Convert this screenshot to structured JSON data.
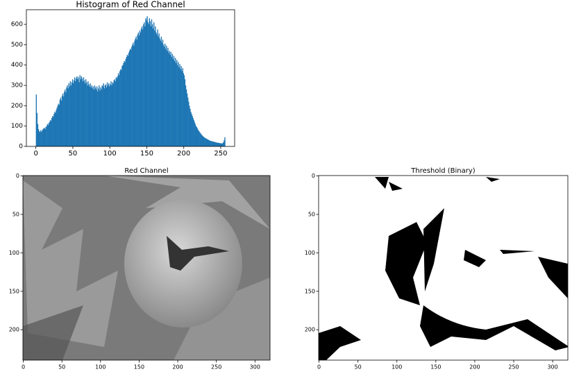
{
  "chart_data": [
    {
      "type": "histogram",
      "title": "Histogram of Red Channel",
      "color": "#1f77b4",
      "bins": [
        0,
        1,
        2,
        3,
        4,
        5,
        6,
        7,
        8,
        9,
        10,
        11,
        12,
        13,
        14,
        15,
        16,
        17,
        18,
        19,
        20,
        21,
        22,
        23,
        24,
        25,
        26,
        27,
        28,
        29,
        30,
        31,
        32,
        33,
        34,
        35,
        36,
        37,
        38,
        39,
        40,
        41,
        42,
        43,
        44,
        45,
        46,
        47,
        48,
        49,
        50,
        51,
        52,
        53,
        54,
        55,
        56,
        57,
        58,
        59,
        60,
        61,
        62,
        63,
        64,
        65,
        66,
        67,
        68,
        69,
        70,
        71,
        72,
        73,
        74,
        75,
        76,
        77,
        78,
        79,
        80,
        81,
        82,
        83,
        84,
        85,
        86,
        87,
        88,
        89,
        90,
        91,
        92,
        93,
        94,
        95,
        96,
        97,
        98,
        99,
        100,
        101,
        102,
        103,
        104,
        105,
        106,
        107,
        108,
        109,
        110,
        111,
        112,
        113,
        114,
        115,
        116,
        117,
        118,
        119,
        120,
        121,
        122,
        123,
        124,
        125,
        126,
        127,
        128,
        129,
        130,
        131,
        132,
        133,
        134,
        135,
        136,
        137,
        138,
        139,
        140,
        141,
        142,
        143,
        144,
        145,
        146,
        147,
        148,
        149,
        150,
        151,
        152,
        153,
        154,
        155,
        156,
        157,
        158,
        159,
        160,
        161,
        162,
        163,
        164,
        165,
        166,
        167,
        168,
        169,
        170,
        171,
        172,
        173,
        174,
        175,
        176,
        177,
        178,
        179,
        180,
        181,
        182,
        183,
        184,
        185,
        186,
        187,
        188,
        189,
        190,
        191,
        192,
        193,
        194,
        195,
        196,
        197,
        198,
        199,
        200,
        201,
        202,
        203,
        204,
        205,
        206,
        207,
        208,
        209,
        210,
        211,
        212,
        213,
        214,
        215,
        216,
        217,
        218,
        219,
        220,
        221,
        222,
        223,
        224,
        225,
        226,
        227,
        228,
        229,
        230,
        231,
        232,
        233,
        234,
        235,
        236,
        237,
        238,
        239,
        240,
        241,
        242,
        243,
        244,
        245,
        246,
        247,
        248,
        249,
        250,
        251,
        252,
        253,
        254,
        255,
        256
      ],
      "counts": [
        255,
        165,
        110,
        85,
        75,
        70,
        80,
        72,
        78,
        85,
        88,
        92,
        85,
        95,
        100,
        110,
        105,
        115,
        120,
        130,
        125,
        140,
        150,
        145,
        160,
        170,
        165,
        180,
        190,
        200,
        210,
        205,
        230,
        240,
        225,
        250,
        260,
        245,
        270,
        280,
        265,
        290,
        300,
        285,
        310,
        295,
        320,
        300,
        315,
        330,
        310,
        325,
        340,
        320,
        335,
        345,
        330,
        340,
        315,
        350,
        330,
        345,
        335,
        320,
        340,
        325,
        310,
        330,
        315,
        300,
        320,
        305,
        295,
        310,
        290,
        300,
        285,
        295,
        280,
        300,
        290,
        280,
        295,
        270,
        285,
        300,
        275,
        290,
        280,
        300,
        295,
        310,
        285,
        300,
        305,
        290,
        315,
        300,
        310,
        295,
        305,
        320,
        300,
        315,
        310,
        325,
        330,
        320,
        340,
        335,
        345,
        360,
        350,
        370,
        380,
        375,
        395,
        400,
        410,
        420,
        415,
        430,
        440,
        450,
        445,
        460,
        470,
        480,
        475,
        490,
        500,
        510,
        495,
        520,
        530,
        540,
        525,
        550,
        560,
        545,
        570,
        560,
        580,
        590,
        575,
        600,
        610,
        590,
        630,
        620,
        640,
        610,
        600,
        630,
        615,
        590,
        625,
        600,
        580,
        610,
        570,
        590,
        560,
        550,
        575,
        540,
        555,
        530,
        520,
        540,
        510,
        525,
        500,
        490,
        505,
        480,
        495,
        470,
        485,
        460,
        470,
        450,
        465,
        440,
        455,
        430,
        445,
        420,
        435,
        410,
        425,
        400,
        415,
        390,
        405,
        380,
        395,
        370,
        385,
        360,
        350,
        330,
        300,
        280,
        260,
        240,
        220,
        200,
        185,
        170,
        160,
        150,
        140,
        130,
        120,
        110,
        100,
        95,
        88,
        80,
        75,
        70,
        65,
        60,
        55,
        52,
        48,
        45,
        42,
        40,
        38,
        36,
        34,
        32,
        30,
        28,
        27,
        26,
        25,
        24,
        23,
        22,
        21,
        20,
        19,
        18,
        18,
        17,
        16,
        16,
        15,
        14,
        16,
        20,
        30,
        45
      ],
      "xlim": [
        -12.8,
        268.8
      ],
      "ylim": [
        0,
        672
      ],
      "xticks": [
        0,
        50,
        100,
        150,
        200,
        250
      ],
      "yticks": [
        0,
        100,
        200,
        300,
        400,
        500,
        600
      ]
    },
    {
      "type": "image",
      "title": "Red Channel",
      "xlim": [
        -0.5,
        319.5
      ],
      "ylim": [
        239.5,
        -0.5
      ],
      "xticks": [
        0,
        50,
        100,
        150,
        200,
        250,
        300
      ],
      "yticks": [
        0,
        50,
        100,
        150,
        200
      ]
    },
    {
      "type": "image",
      "title": "Threshold (Binary)",
      "xlim": [
        -0.5,
        319.5
      ],
      "ylim": [
        239.5,
        -0.5
      ],
      "xticks": [
        0,
        50,
        100,
        150,
        200,
        250,
        300
      ],
      "yticks": [
        0,
        50,
        100,
        150,
        200
      ]
    }
  ]
}
